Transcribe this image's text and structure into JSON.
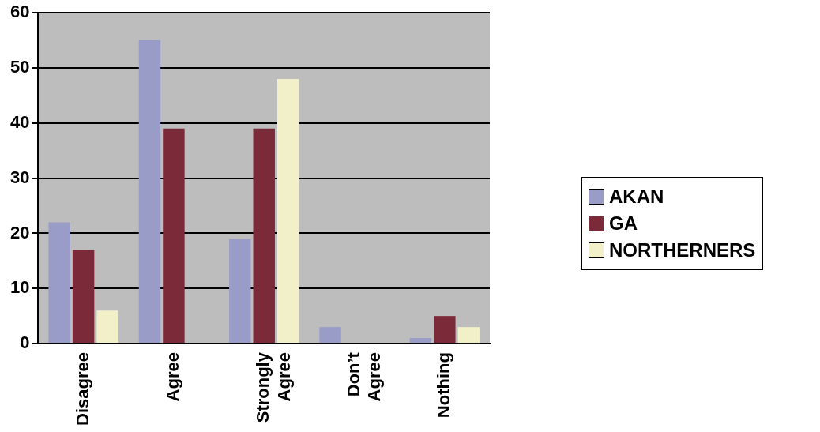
{
  "chart_data": {
    "type": "bar",
    "categories": [
      "Disagree",
      "Agree",
      "Strongly Agree",
      "Don’t Agree",
      "Nothing"
    ],
    "series": [
      {
        "name": "AKAN",
        "color": "#9a9cc8",
        "values": [
          22,
          55,
          19,
          3,
          1
        ]
      },
      {
        "name": "GA",
        "color": "#7a2a38",
        "values": [
          17,
          39,
          39,
          0,
          5
        ]
      },
      {
        "name": "NORTHERNERS",
        "color": "#f2f0c8",
        "values": [
          6,
          0,
          48,
          0,
          3
        ]
      }
    ],
    "ylim": [
      0,
      60
    ],
    "yticks": [
      0,
      10,
      20,
      30,
      40,
      50,
      60
    ],
    "grid": "y",
    "legend": "right"
  }
}
